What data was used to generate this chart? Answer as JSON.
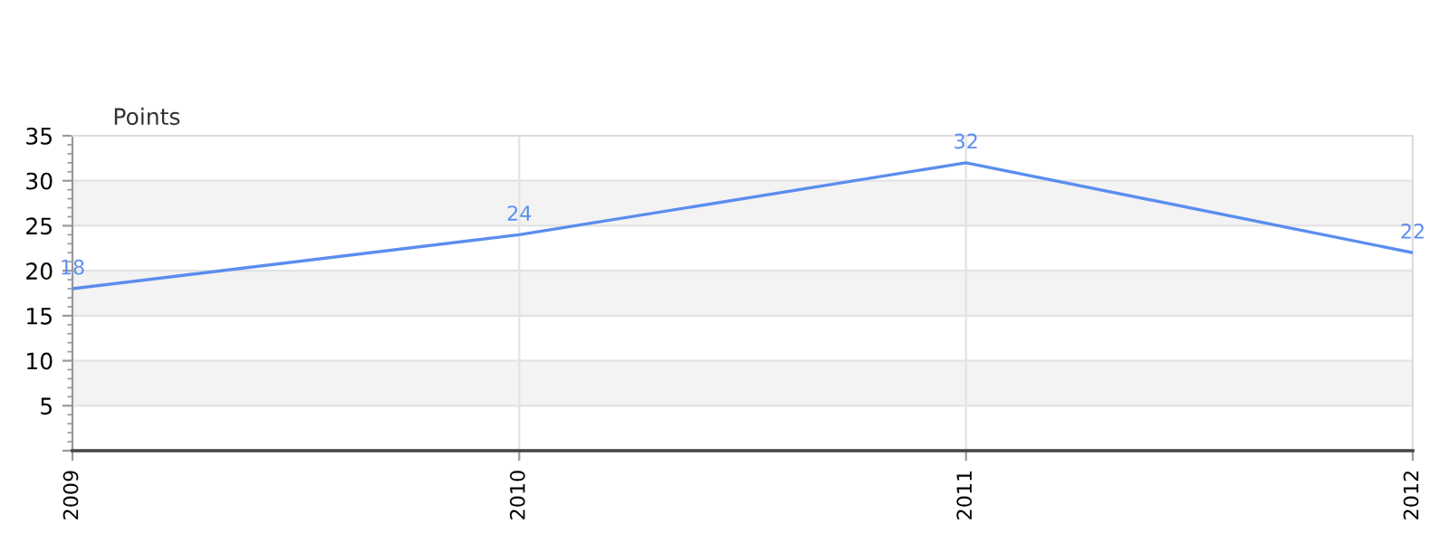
{
  "chart_data": {
    "type": "line",
    "ylabel": "Points",
    "categories": [
      "2009",
      "2010",
      "2011",
      "2012"
    ],
    "series": [
      {
        "color": "#5b8def",
        "values": [
          18,
          24,
          32,
          22
        ]
      }
    ],
    "ylim": [
      0,
      35
    ],
    "yticks": [
      {
        "value": 0,
        "label": null
      },
      5,
      10,
      15,
      20,
      25,
      30,
      35
    ],
    "grid": true,
    "data_labels": true,
    "marker": "none",
    "line_style": "solid",
    "legend": false
  }
}
